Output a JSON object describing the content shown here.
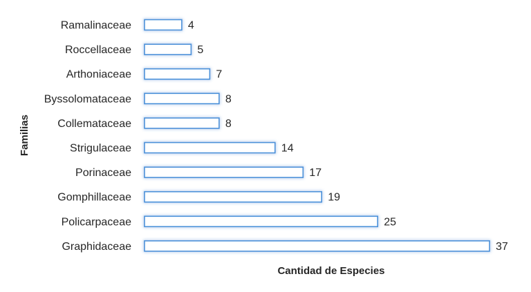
{
  "chart_data": {
    "type": "bar",
    "orientation": "horizontal",
    "categories": [
      "Ramalinaceae",
      "Roccellaceae",
      "Arthoniaceae",
      "Byssolomataceae",
      "Collemataceae",
      "Strigulaceae",
      "Porinaceae",
      "Gomphillaceae",
      "Policarpaceae",
      "Graphidaceae"
    ],
    "values": [
      4,
      5,
      7,
      8,
      8,
      14,
      17,
      19,
      25,
      37
    ],
    "xlabel": "Cantidad de Especies",
    "ylabel": "Familias",
    "xlim": [
      0,
      37
    ],
    "grid": false,
    "data_labels": true,
    "colors": {
      "bar_fill": "#ffffff",
      "bar_border": "#4a90d9",
      "bar_glow": "#9cc6f2",
      "text": "#262626"
    }
  }
}
